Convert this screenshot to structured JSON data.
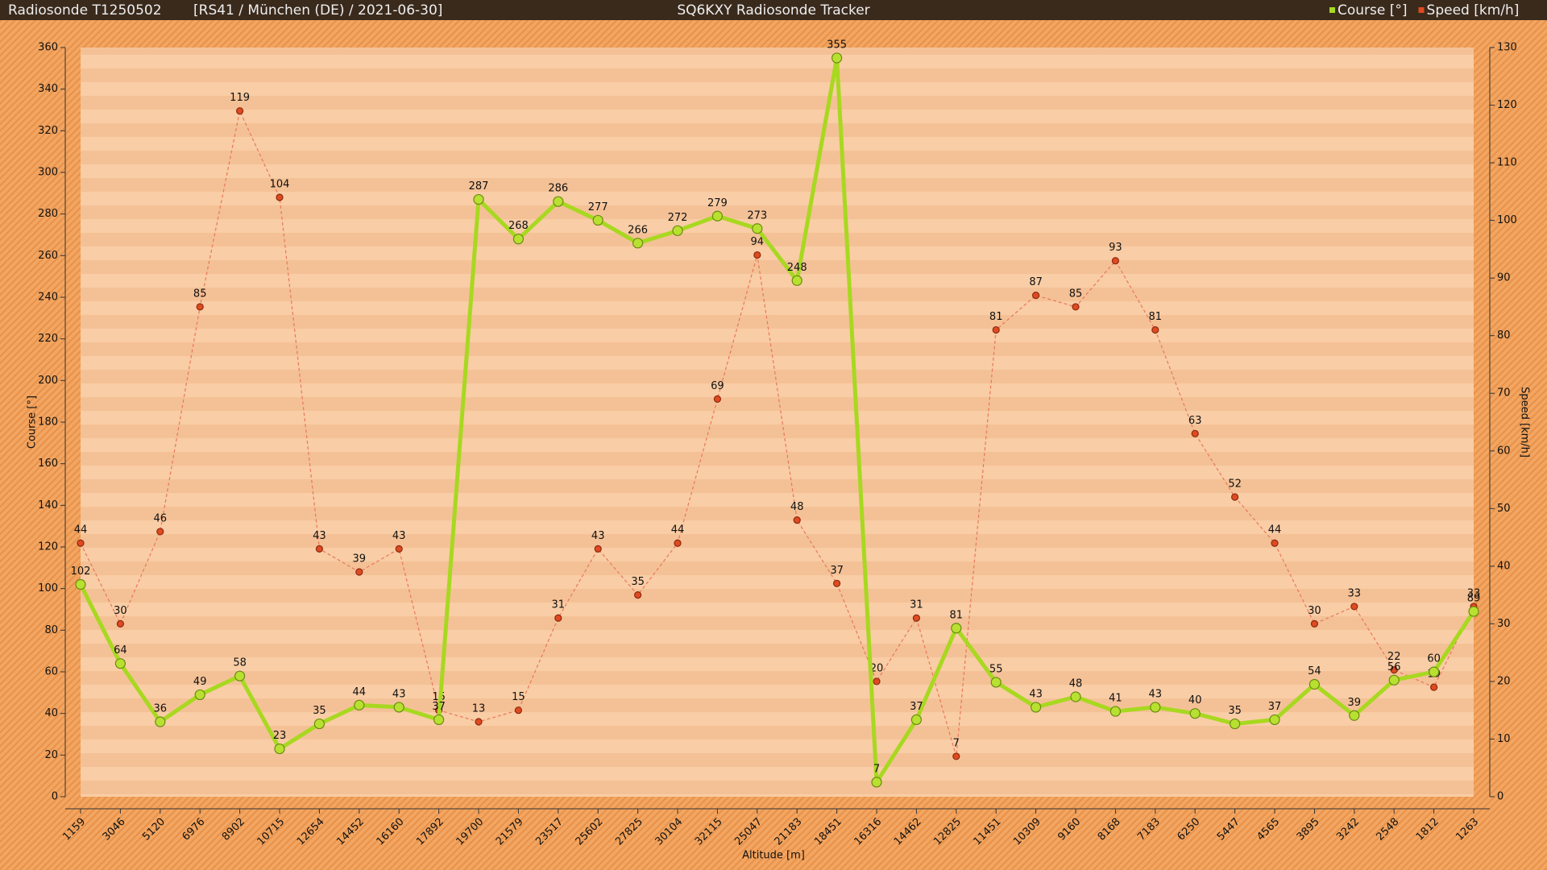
{
  "header": {
    "left": "Radiosonde T1250502",
    "info": "[RS41 / München (DE) / 2021-06-30]",
    "center": "SQ6KXY Radiosonde Tracker"
  },
  "chart_data": {
    "type": "line",
    "x_label": "Altitude [m]",
    "y_label": "Course [°]",
    "y2_label": "Speed [km/h]",
    "categories": [
      "1159",
      "3046",
      "5120",
      "6976",
      "8902",
      "10715",
      "12654",
      "14452",
      "16160",
      "17892",
      "19700",
      "21579",
      "23517",
      "25602",
      "27825",
      "30104",
      "32115",
      "25047",
      "21183",
      "18451",
      "16316",
      "14462",
      "12825",
      "11451",
      "10309",
      "9160",
      "8168",
      "7183",
      "6250",
      "5447",
      "4565",
      "3895",
      "3242",
      "2548",
      "1812",
      "1263"
    ],
    "series": [
      {
        "name": "Course [°]",
        "color": "#a8d820",
        "values": [
          102,
          64,
          36,
          49,
          58,
          23,
          35,
          44,
          43,
          37,
          287,
          268,
          286,
          277,
          266,
          272,
          279,
          273,
          248,
          355,
          7,
          37,
          81,
          55,
          43,
          48,
          41,
          43,
          40,
          35,
          37,
          54,
          39,
          56,
          60,
          89
        ]
      },
      {
        "name": "Speed [km/h]",
        "color": "#e04a20",
        "axis": "y2",
        "values": [
          44,
          30,
          46,
          85,
          119,
          104,
          43,
          39,
          43,
          15,
          13,
          15,
          31,
          43,
          35,
          44,
          69,
          94,
          48,
          37,
          20,
          31,
          7,
          81,
          87,
          85,
          93,
          81,
          63,
          52,
          44,
          30,
          33,
          22,
          19,
          33
        ]
      }
    ],
    "ylim": [
      0,
      360
    ],
    "yticks": [
      0,
      20,
      40,
      60,
      80,
      100,
      120,
      140,
      160,
      180,
      200,
      220,
      240,
      260,
      280,
      300,
      320,
      340,
      360
    ],
    "y2lim": [
      0,
      130
    ],
    "y2ticks": [
      0,
      10,
      20,
      30,
      40,
      50,
      60,
      70,
      80,
      90,
      100,
      110,
      120,
      130
    ],
    "legend": "top-right"
  }
}
